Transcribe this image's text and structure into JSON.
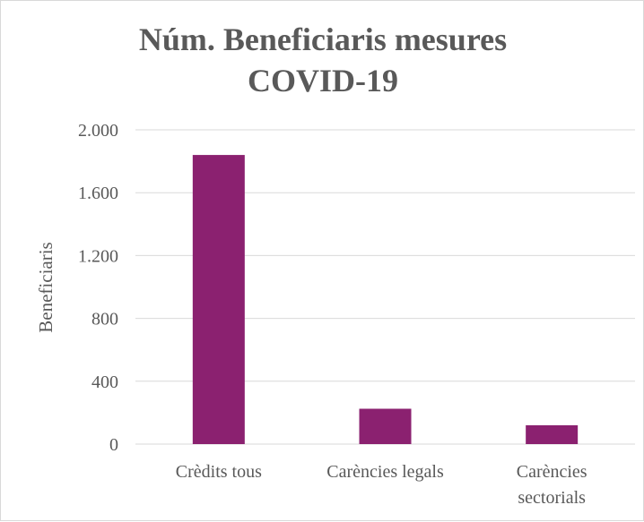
{
  "chart_data": {
    "type": "bar",
    "title_lines": [
      "Núm. Beneficiaris mesures",
      "COVID-19"
    ],
    "xlabel": "",
    "ylabel": "Beneficiaris",
    "categories": [
      [
        "Crèdits tous"
      ],
      [
        "Carències legals"
      ],
      [
        "Carències",
        "sectorials"
      ]
    ],
    "values": [
      1840,
      225,
      120
    ],
    "ylim": [
      0,
      2000
    ],
    "y_ticks": [
      0,
      400,
      800,
      1200,
      1600,
      2000
    ],
    "y_tick_labels": [
      "0",
      "400",
      "800",
      "1.200",
      "1.600",
      "2.000"
    ],
    "bar_color": "#8B2170",
    "grid": true,
    "gridline_color": "#d9d9d9",
    "legend": "none"
  }
}
